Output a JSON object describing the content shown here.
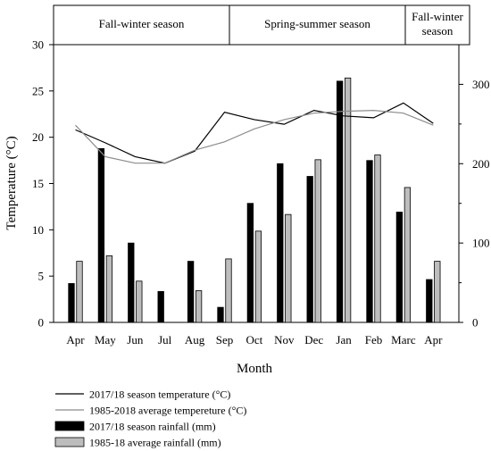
{
  "chart_data": {
    "type": "bar",
    "categories": [
      "Apr",
      "May",
      "Jun",
      "Jul",
      "Aug",
      "Sep",
      "Oct",
      "Nov",
      "Dec",
      "Jan",
      "Feb",
      "Marc",
      "Apr"
    ],
    "seasons": [
      {
        "label_lines": [
          "Fall-winter season"
        ],
        "from_index": 0,
        "to_index": 5
      },
      {
        "label_lines": [
          "Spring-summer season"
        ],
        "from_index": 6,
        "to_index": 11
      },
      {
        "label_lines": [
          "Fall-winter",
          "season"
        ],
        "from_index": 12,
        "to_index": 12
      }
    ],
    "xlabel": "Month",
    "ylabel": "Temperature (°C)",
    "ylim": [
      0,
      30
    ],
    "y_ticks": [
      0,
      5,
      10,
      15,
      20,
      25,
      30
    ],
    "y2lim": [
      0,
      350
    ],
    "y2_ticks": [
      0,
      100,
      200,
      300
    ],
    "grid": false,
    "legend_position": "bottom",
    "bar_series": [
      {
        "name": "2017/18 season rainfall (mm)",
        "color": "#000000",
        "axis": "right",
        "values": [
          49,
          219,
          100,
          39,
          77,
          19,
          150,
          200,
          184,
          304,
          204,
          139,
          54
        ]
      },
      {
        "name": "1985-18 average rainfall (mm)",
        "color": "#bdbdbd",
        "axis": "right",
        "values": [
          77,
          84,
          52,
          null,
          40,
          80,
          115,
          136,
          205,
          308,
          211,
          170,
          77
        ]
      }
    ],
    "line_series": [
      {
        "name": "2017/18 season temperature (°C)",
        "color": "#000000",
        "axis": "left",
        "values": [
          20.8,
          19.4,
          17.9,
          17.2,
          18.5,
          22.7,
          21.9,
          21.4,
          22.9,
          22.3,
          22.1,
          23.7,
          21.5
        ]
      },
      {
        "name": "1985-2018 average tempereture (°C)",
        "color": "#8c8c8c",
        "axis": "left",
        "values": [
          21.3,
          17.9,
          17.2,
          17.2,
          18.6,
          19.5,
          20.9,
          21.9,
          22.6,
          22.8,
          22.9,
          22.6,
          21.3
        ]
      }
    ]
  }
}
